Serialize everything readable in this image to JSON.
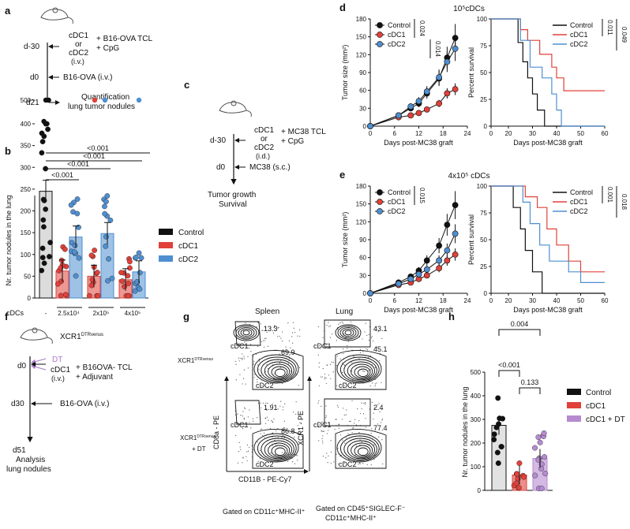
{
  "panel_letters": {
    "a": "a",
    "b": "b",
    "c": "c",
    "d": "d",
    "e": "e",
    "f": "f",
    "g": "g",
    "h": "h"
  },
  "colors": {
    "control": "#111111",
    "cdc1": "#e0413a",
    "cdc2": "#4f8fd0",
    "cdc1_dt": "#b58bd0",
    "dt_arrow": "#a97bc9"
  },
  "panel_a": {
    "d_minus30": "d-30",
    "cdc1": "cDC1",
    "or": "or",
    "cdc2": "cDC2",
    "iv": "(i.v.)",
    "treat1": "+ B16-OVA TCL",
    "treat2": "+ CpG",
    "d0": "d0",
    "tumor": "B16-OVA (i.v.)",
    "d21": "d21",
    "quant1": "Quantification",
    "quant2": "lung tumor nodules"
  },
  "panel_c": {
    "d_minus30": "d-30",
    "cdc1": "cDC1",
    "or": "or",
    "cdc2": "cDC2",
    "id": "(i.d.)",
    "treat1": "+ MC38 TCL",
    "treat2": "+ CpG",
    "d0": "d0",
    "tumor": "MC38 (s.c.)",
    "out1": "Tumor growth",
    "out2": "Survival"
  },
  "panel_f": {
    "mouse": "XCR1",
    "mouse_sup": "DTRvenus",
    "dt": "DT",
    "d0": "d0",
    "cdc1": "cDC1",
    "iv": "(i.v.)",
    "treat1": "+ B16OVA- TCL",
    "treat2": "+ Adjuvant",
    "d30": "d30",
    "tumor": "B16-OVA (i.v.)",
    "d51": "d51",
    "an1": "Analysis",
    "an2": "lung nodules"
  },
  "chart_data": [
    {
      "id": "b",
      "type": "bar",
      "ylabel": "Nr. tumor nodules in the lung",
      "yticks": [
        "0",
        "50",
        "100",
        "150",
        "200",
        "250",
        "300",
        "350",
        "400",
        "500"
      ],
      "xrow_label": "cDCs",
      "groups": [
        "-",
        "2.5x10⁴",
        "2x10⁵",
        "4x10⁵"
      ],
      "series": [
        {
          "name": "Control",
          "values": [
            245
          ]
        },
        {
          "name": "cDC1",
          "values": [
            62,
            50,
            42
          ]
        },
        {
          "name": "cDC2",
          "values": [
            140,
            148,
            60
          ]
        }
      ],
      "pvalues": [
        "<0.001",
        "<0.001",
        "<0.001",
        "<0.001"
      ],
      "legend": [
        "Control",
        "cDC1",
        "cDC2"
      ]
    },
    {
      "id": "d_growth",
      "type": "line",
      "title": "10⁵cDCs",
      "ylabel": "Tumor size (mm²)",
      "xlabel": "Days post-MC38 graft",
      "xticks": [
        "0",
        "6",
        "12",
        "18",
        "24"
      ],
      "yticks": [
        "0",
        "30",
        "60",
        "90",
        "120",
        "150",
        "180"
      ],
      "x": [
        0,
        7,
        10,
        12,
        14,
        17,
        19,
        21
      ],
      "series": [
        {
          "name": "Control",
          "values": [
            0,
            18,
            30,
            38,
            55,
            80,
            115,
            148
          ]
        },
        {
          "name": "cDC1",
          "values": [
            0,
            15,
            18,
            22,
            28,
            38,
            55,
            62
          ]
        },
        {
          "name": "cDC2",
          "values": [
            0,
            18,
            33,
            42,
            58,
            82,
            108,
            130
          ]
        }
      ],
      "pvalues": [
        "0.024",
        "0.014"
      ]
    },
    {
      "id": "d_survival",
      "type": "line",
      "ylabel": "Percent survival",
      "xlabel": "Days post-MC38 graft",
      "xticks": [
        "0",
        "20",
        "30",
        "40",
        "50",
        "60"
      ],
      "yticks": [
        "0",
        "25",
        "50",
        "75",
        "100"
      ],
      "legend": [
        "Control",
        "cDC1",
        "cDC2"
      ],
      "pvalues": [
        "0.011",
        "0.049"
      ]
    },
    {
      "id": "e_growth",
      "type": "line",
      "title": "4x10⁵ cDCs",
      "ylabel": "Tumor size (mm²)",
      "xlabel": "Days post-MC38 graft",
      "xticks": [
        "0",
        "6",
        "12",
        "18",
        "24"
      ],
      "yticks": [
        "0",
        "30",
        "60",
        "90",
        "120",
        "150",
        "180"
      ],
      "x": [
        0,
        7,
        10,
        12,
        14,
        17,
        19,
        21
      ],
      "series": [
        {
          "name": "Control",
          "values": [
            0,
            18,
            28,
            38,
            55,
            80,
            115,
            148
          ]
        },
        {
          "name": "cDC1",
          "values": [
            0,
            14,
            18,
            24,
            30,
            42,
            55,
            65
          ]
        },
        {
          "name": "cDC2",
          "values": [
            0,
            16,
            24,
            32,
            40,
            55,
            72,
            100
          ]
        }
      ],
      "pvalues": [
        "0.015"
      ]
    },
    {
      "id": "e_survival",
      "type": "line",
      "ylabel": "Percent survival",
      "xlabel": "Days post-MC38 graft",
      "xticks": [
        "0",
        "20",
        "30",
        "40",
        "50",
        "60"
      ],
      "yticks": [
        "0",
        "25",
        "50",
        "75",
        "100"
      ],
      "legend": [
        "Control",
        "cDC1",
        "cDC2"
      ],
      "pvalues": [
        "0.001",
        "0.018"
      ]
    },
    {
      "id": "h",
      "type": "bar",
      "ylabel": "Nr. tumor nodules in the lung",
      "yticks": [
        "0",
        "100",
        "200",
        "300",
        "400",
        "500"
      ],
      "categories": [
        "Control",
        "cDC1",
        "cDC1 + DT"
      ],
      "values": [
        275,
        65,
        135
      ],
      "pvalues": [
        "0.004",
        "<0.001",
        "0.133"
      ],
      "legend": [
        "Control",
        "cDC1",
        "cDC1 + DT"
      ]
    }
  ],
  "panel_g": {
    "spleen": "Spleen",
    "lung": "Lung",
    "row1": "XCR1",
    "row1_sup": "DTRvenus",
    "row2": "XCR1",
    "row2_sup": "DTRvenus",
    "row2b": "+ DT",
    "cdc1": "cDC1",
    "cdc2": "cDC2",
    "sp1_a": "13.3",
    "sp1_b": "69.9",
    "lu1_a": "43.1",
    "lu1_b": "45.1",
    "sp2_a": "1.91",
    "sp2_b": "86.8",
    "lu2_a": "2.4",
    "lu2_b": "77.4",
    "sp_y": "CD8a - PE",
    "sp_x": "CD11B - PE-Cy7",
    "lu_y": "XCR1 - PE",
    "gate1": "Gated on CD11c⁺MHC-II⁺",
    "gate2a": "Gated on CD45⁺SIGLEC-F⁻",
    "gate2b": "CD11c⁺MHC-II⁺"
  }
}
